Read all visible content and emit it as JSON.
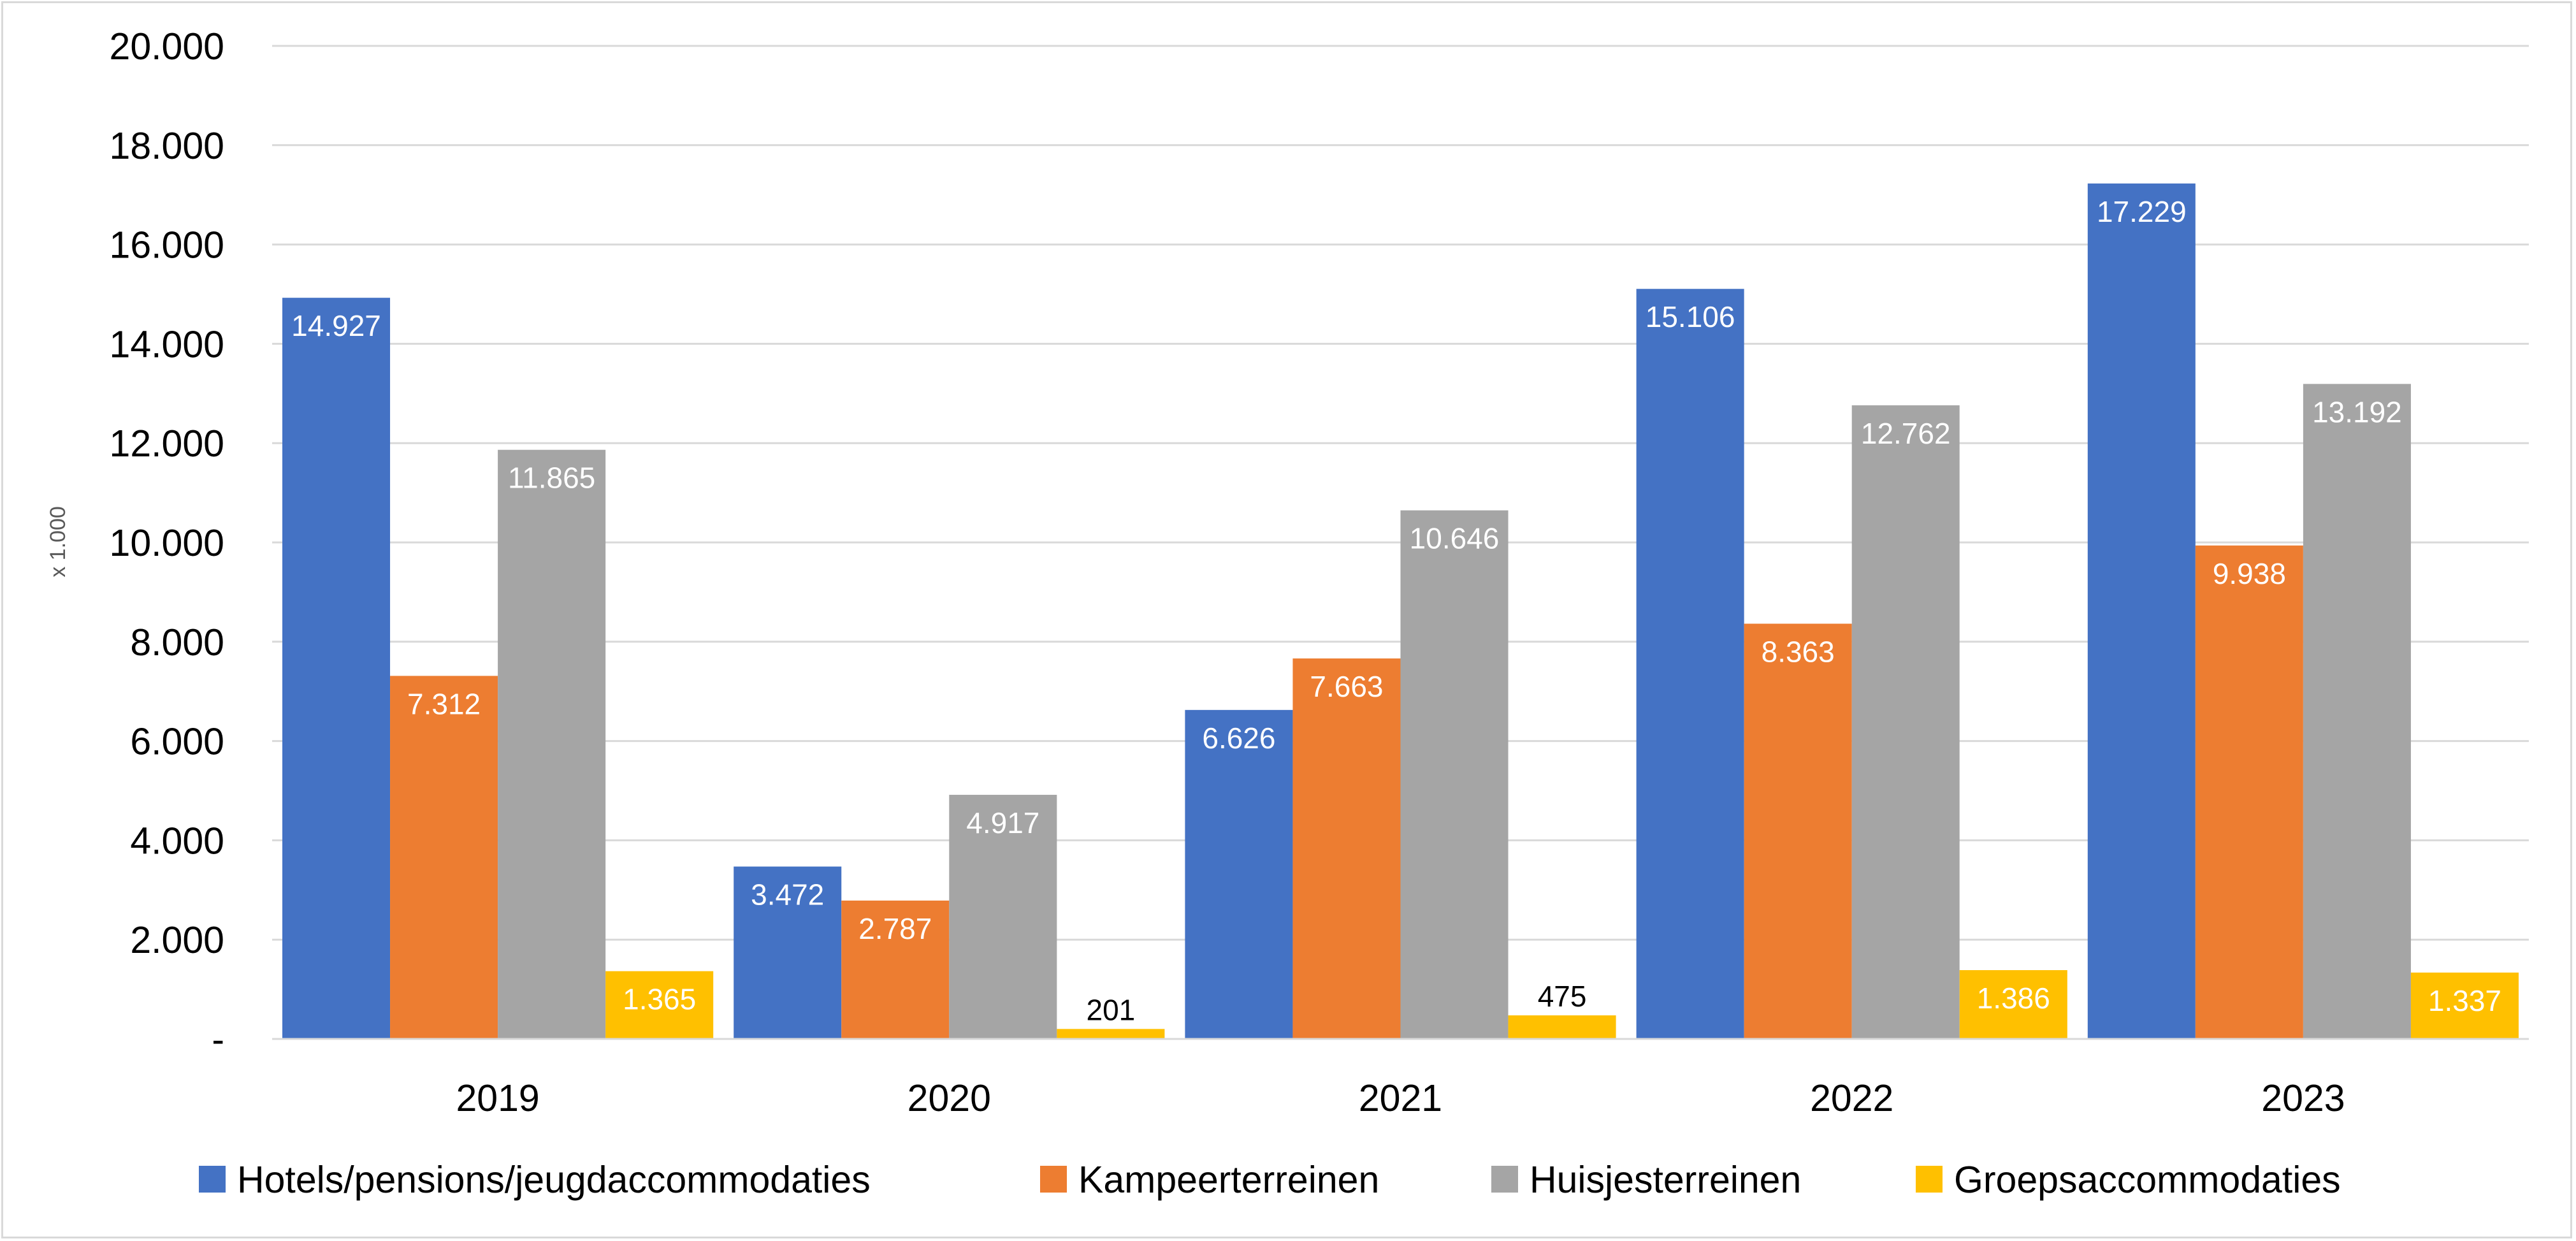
{
  "chart_data": {
    "type": "bar",
    "title": "",
    "xlabel": "",
    "ylabel": "x 1.000",
    "ylim": [
      0,
      20000
    ],
    "yticks": [
      0,
      2000,
      4000,
      6000,
      8000,
      10000,
      12000,
      14000,
      16000,
      18000,
      20000
    ],
    "ytick_labels": [
      "-",
      "2.000",
      "4.000",
      "6.000",
      "8.000",
      "10.000",
      "12.000",
      "14.000",
      "16.000",
      "18.000",
      "20.000"
    ],
    "categories": [
      "2019",
      "2020",
      "2021",
      "2022",
      "2023"
    ],
    "series": [
      {
        "name": "Hotels/pensions/jeugdaccommodaties",
        "color": "#4472c4",
        "label_color": "#ffffff",
        "values": [
          14927,
          3472,
          6626,
          15106,
          17229
        ],
        "labels": [
          "14.927",
          "3.472",
          "6.626",
          "15.106",
          "17.229"
        ]
      },
      {
        "name": "Kampeerterreinen",
        "color": "#ed7d31",
        "label_color": "#ffffff",
        "values": [
          7312,
          2787,
          7663,
          8363,
          9938
        ],
        "labels": [
          "7.312",
          "2.787",
          "7.663",
          "8.363",
          "9.938"
        ]
      },
      {
        "name": "Huisjesterreinen",
        "color": "#a5a5a5",
        "label_color": "#ffffff",
        "values": [
          11865,
          4917,
          10646,
          12762,
          13192
        ],
        "labels": [
          "11.865",
          "4.917",
          "10.646",
          "12.762",
          "13.192"
        ]
      },
      {
        "name": "Groepsaccommodaties",
        "color": "#ffc000",
        "label_color": "#ffffff",
        "values": [
          1365,
          201,
          475,
          1386,
          1337
        ],
        "labels": [
          "1.365",
          "201",
          "475",
          "1.386",
          "1.337"
        ]
      }
    ],
    "grid": true,
    "legend": "bottom"
  }
}
